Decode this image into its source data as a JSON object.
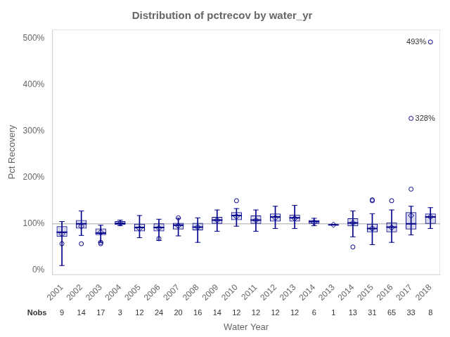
{
  "chart_data": {
    "type": "box",
    "title": "Distribution of pctrecov by water_yr",
    "xlabel": "Water Year",
    "ylabel": "Pct Recovery",
    "categories": [
      "2001",
      "2002",
      "2003",
      "2004",
      "2005",
      "2006",
      "2007",
      "2008",
      "2009",
      "2010",
      "2011",
      "2012",
      "2013",
      "2014",
      "2013",
      "2014",
      "2015",
      "2016",
      "2017",
      "2018"
    ],
    "boxes": [
      {
        "q1": 72,
        "median": 82,
        "q3": 95,
        "whislo": 10,
        "whishi": 105,
        "mean": 78,
        "fliers": [
          57
        ]
      },
      {
        "q1": 90,
        "median": 100,
        "q3": 108,
        "whislo": 75,
        "whishi": 128,
        "mean": 95,
        "fliers": [
          57
        ]
      },
      {
        "q1": 76,
        "median": 80,
        "q3": 90,
        "whislo": 60,
        "whishi": 97,
        "mean": 82,
        "fliers": [
          57,
          60
        ]
      },
      {
        "q1": 98,
        "median": 101,
        "q3": 106,
        "whislo": 96,
        "whishi": 108,
        "mean": 101,
        "fliers": []
      },
      {
        "q1": 84,
        "median": 92,
        "q3": 100,
        "whislo": 70,
        "whishi": 118,
        "mean": 90,
        "fliers": []
      },
      {
        "q1": 84,
        "median": 92,
        "q3": 101,
        "whislo": 64,
        "whishi": 110,
        "mean": 91,
        "fliers": [
          68
        ]
      },
      {
        "q1": 88,
        "median": 97,
        "q3": 102,
        "whislo": 74,
        "whishi": 112,
        "mean": 96,
        "fliers": [
          113
        ]
      },
      {
        "q1": 86,
        "median": 93,
        "q3": 102,
        "whislo": 60,
        "whishi": 113,
        "mean": 93,
        "fliers": []
      },
      {
        "q1": 100,
        "median": 108,
        "q3": 115,
        "whislo": 84,
        "whishi": 130,
        "mean": 108,
        "fliers": []
      },
      {
        "q1": 108,
        "median": 118,
        "q3": 125,
        "whislo": 95,
        "whishi": 133,
        "mean": 116,
        "fliers": [
          150
        ]
      },
      {
        "q1": 100,
        "median": 108,
        "q3": 118,
        "whislo": 84,
        "whishi": 130,
        "mean": 108,
        "fliers": []
      },
      {
        "q1": 105,
        "median": 115,
        "q3": 122,
        "whislo": 90,
        "whishi": 138,
        "mean": 113,
        "fliers": []
      },
      {
        "q1": 105,
        "median": 113,
        "q3": 120,
        "whislo": 90,
        "whishi": 140,
        "mean": 112,
        "fliers": []
      },
      {
        "q1": 100,
        "median": 105,
        "q3": 108,
        "whislo": 96,
        "whishi": 112,
        "mean": 103,
        "fliers": []
      },
      {
        "q1": 98,
        "median": 98,
        "q3": 98,
        "whislo": 98,
        "whishi": 98,
        "mean": 98,
        "fliers": []
      },
      {
        "q1": 95,
        "median": 102,
        "q3": 112,
        "whislo": 72,
        "whishi": 128,
        "mean": 102,
        "fliers": [
          50
        ]
      },
      {
        "q1": 82,
        "median": 90,
        "q3": 100,
        "whislo": 55,
        "whishi": 122,
        "mean": 90,
        "fliers": [
          150,
          152
        ]
      },
      {
        "q1": 82,
        "median": 93,
        "q3": 103,
        "whislo": 60,
        "whishi": 130,
        "mean": 92,
        "fliers": [
          150
        ]
      },
      {
        "q1": 88,
        "median": 100,
        "q3": 125,
        "whislo": 76,
        "whishi": 138,
        "mean": 118,
        "fliers": [
          175,
          328
        ]
      },
      {
        "q1": 100,
        "median": 115,
        "q3": 122,
        "whislo": 90,
        "whishi": 135,
        "mean": 115,
        "fliers": [
          493
        ]
      }
    ],
    "nobs_label": "Nobs",
    "nobs": [
      9,
      14,
      17,
      3,
      12,
      24,
      20,
      16,
      14,
      12,
      12,
      12,
      12,
      6,
      1,
      13,
      31,
      65,
      33,
      8
    ],
    "annotations": [
      {
        "x": "2017",
        "y": 328,
        "text": "328%"
      },
      {
        "x": "2018",
        "y": 493,
        "text": "493%"
      }
    ],
    "reference_line": 100,
    "ylim": [
      -10,
      520
    ],
    "yticks": [
      {
        "value": 0,
        "label": "0%"
      },
      {
        "value": 100,
        "label": "100%"
      },
      {
        "value": 200,
        "label": "200%"
      },
      {
        "value": 300,
        "label": "300%"
      },
      {
        "value": 400,
        "label": "400%"
      },
      {
        "value": 500,
        "label": "500%"
      }
    ],
    "grid": false,
    "color": "#00008b"
  }
}
